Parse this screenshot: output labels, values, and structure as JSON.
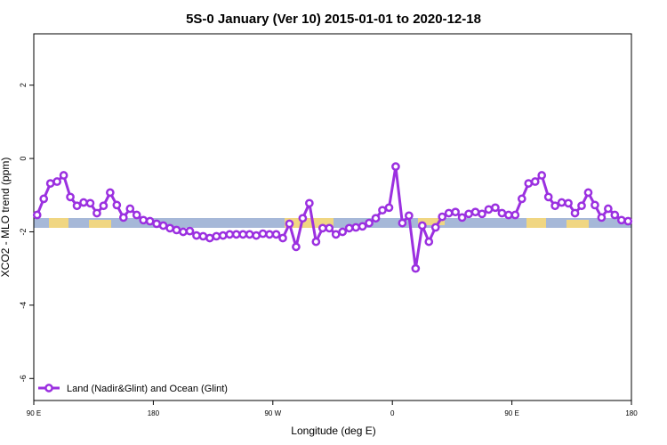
{
  "chart_data": {
    "type": "line",
    "title": "5S-0 January (Ver 10)   2015-01-01 to 2020-12-18",
    "x_label": "Longitude (deg E)",
    "y_label": "XCO2 - MLO trend (ppm)",
    "x": [
      92.5,
      97.5,
      102.5,
      107.5,
      112.5,
      117.5,
      122.5,
      127.5,
      132.5,
      137.5,
      142.5,
      147.5,
      152.5,
      157.5,
      162.5,
      167.5,
      172.5,
      177.5,
      182.5,
      187.5,
      192.5,
      197.5,
      202.5,
      207.5,
      212.5,
      217.5,
      222.5,
      227.5,
      232.5,
      237.5,
      242.5,
      247.5,
      252.5,
      257.5,
      262.5,
      267.5,
      272.5,
      277.5,
      282.5,
      287.5,
      292.5,
      297.5,
      302.5,
      307.5,
      312.5,
      317.5,
      322.5,
      327.5,
      332.5,
      337.5,
      342.5,
      347.5,
      352.5,
      357.5,
      362.5,
      367.5,
      372.5,
      377.5,
      382.5,
      387.5,
      392.5,
      397.5,
      402.5,
      407.5,
      412.5,
      417.5,
      422.5,
      427.5,
      432.5,
      437.5,
      442.5,
      447.5,
      452.5,
      457.5,
      462.5,
      467.5,
      472.5,
      477.5,
      482.5,
      487.5,
      492.5,
      497.5,
      502.5,
      507.5,
      512.5,
      517.5,
      522.5,
      527.5,
      532.5,
      537.5
    ],
    "series": [
      {
        "name": "Land (Nadir&Glint) and Ocean (Glint)",
        "color": "#9b30e0",
        "values": [
          -1.54,
          -1.1,
          -0.68,
          -0.63,
          -0.46,
          -1.05,
          -1.29,
          -1.2,
          -1.22,
          -1.49,
          -1.29,
          -0.93,
          -1.27,
          -1.61,
          -1.37,
          -1.54,
          -1.68,
          -1.71,
          -1.78,
          -1.83,
          -1.9,
          -1.95,
          -2.0,
          -1.98,
          -2.1,
          -2.12,
          -2.17,
          -2.12,
          -2.1,
          -2.07,
          -2.07,
          -2.07,
          -2.07,
          -2.1,
          -2.05,
          -2.07,
          -2.07,
          -2.17,
          -1.78,
          -2.41,
          -1.63,
          -1.22,
          -2.27,
          -1.9,
          -1.9,
          -2.07,
          -2.0,
          -1.9,
          -1.88,
          -1.85,
          -1.76,
          -1.63,
          -1.41,
          -1.34,
          -0.22,
          -1.76,
          -1.56,
          -3.0,
          -1.83,
          -2.27,
          -1.88,
          -1.59,
          -1.49,
          -1.46,
          -1.61,
          -1.51,
          -1.46,
          -1.51,
          -1.39,
          -1.34,
          -1.49,
          -1.54,
          -1.54,
          -1.1,
          -0.68,
          -0.63,
          -0.46,
          -1.05,
          -1.29,
          -1.2,
          -1.22,
          -1.49,
          -1.29,
          -0.93,
          -1.27,
          -1.61,
          -1.37,
          -1.54,
          -1.68,
          -1.71
        ]
      }
    ],
    "xlim": [
      90,
      540
    ],
    "xticks": [
      {
        "value": 90,
        "label": "90 E"
      },
      180,
      {
        "value": 270,
        "label": "90 W"
      },
      {
        "value": 360,
        "label": "0"
      },
      {
        "value": 450,
        "label": "90 E"
      },
      {
        "value": 540,
        "label": "180"
      }
    ],
    "ylim": [
      -6.6,
      3.4
    ],
    "yticks": [
      -6,
      -4,
      -2,
      0,
      2
    ],
    "legend": "bottom-left"
  }
}
